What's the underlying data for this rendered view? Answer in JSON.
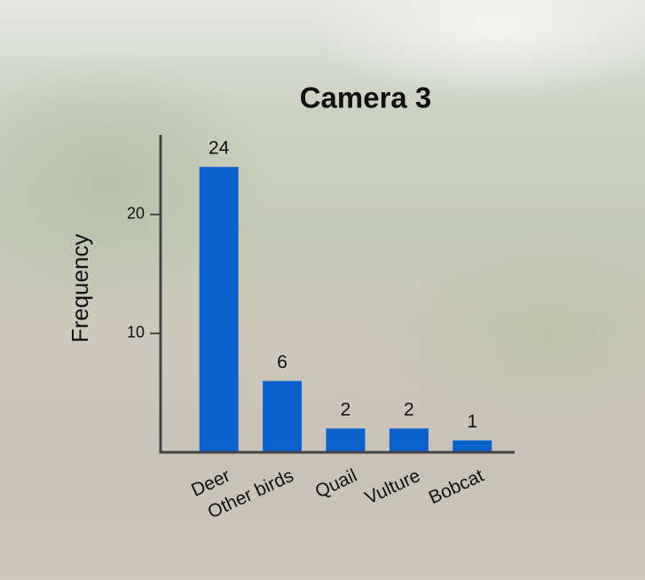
{
  "chart_data": {
    "type": "bar",
    "title": "Camera 3",
    "y_label": "Frequency",
    "categories": [
      "Deer",
      "Other birds",
      "Quail",
      "Vulture",
      "Bobcat"
    ],
    "values": [
      24,
      6,
      2,
      2,
      1
    ],
    "color": "#0a62cf",
    "ylim": [
      0,
      26.7
    ],
    "yticks": [
      10,
      20
    ],
    "grid": false,
    "data_labels": true
  }
}
